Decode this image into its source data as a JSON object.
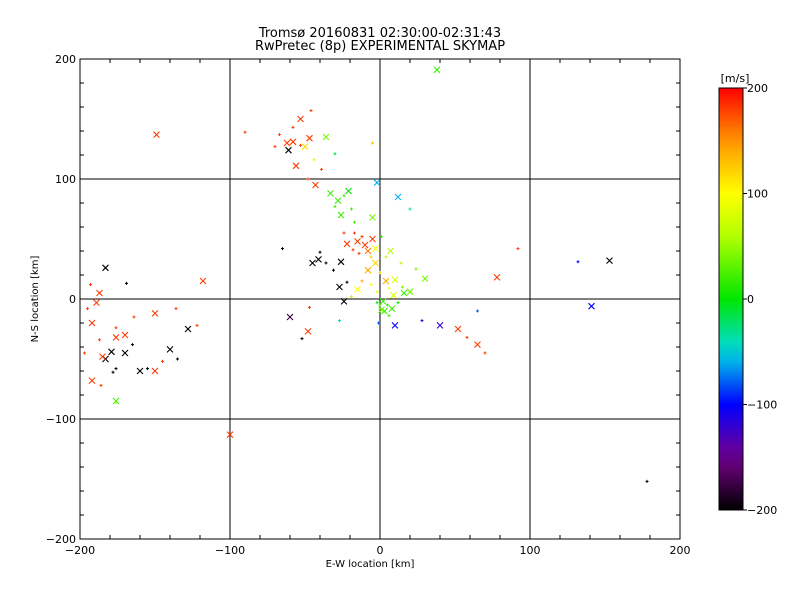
{
  "title_line1": "Tromsø 20160831 02:30:00-02:31:43",
  "title_line2": "RwPretec (8p) EXPERIMENTAL SKYMAP",
  "colors": {
    "grid": "#000000",
    "background": "#ffffff"
  },
  "chart_data": {
    "type": "scatter",
    "title": "Tromsø 20160831 02:30:00-02:31:43\nRwPretec (8p) EXPERIMENTAL SKYMAP",
    "xlabel": "E-W location [km]",
    "ylabel": "N-S location [km]",
    "xlim": [
      -200,
      200
    ],
    "ylim": [
      -200,
      200
    ],
    "xticks": [
      "−200",
      "−100",
      "0",
      "100",
      "200"
    ],
    "yticks": [
      "−200",
      "−100",
      "0",
      "100",
      "200"
    ],
    "grid": true,
    "markers": [
      "x (large)",
      "+ (small)"
    ],
    "colorbar": {
      "label": "[m/s]",
      "range": [
        -200,
        200
      ],
      "ticks": [
        "200",
        "100",
        "0",
        "−100",
        "−200"
      ],
      "colormap": "black-purple-blue-cyan-green-yellow-orange-red",
      "position": "right"
    },
    "points": [
      [
        -183,
        26,
        -200
      ],
      [
        -195,
        -8,
        180
      ],
      [
        -192,
        -20,
        180
      ],
      [
        -187,
        -34,
        180
      ],
      [
        -183,
        -50,
        -200
      ],
      [
        -176,
        -58,
        -200
      ],
      [
        -170,
        -45,
        -200
      ],
      [
        -165,
        -38,
        -200
      ],
      [
        -160,
        -60,
        -200
      ],
      [
        -155,
        -58,
        -200
      ],
      [
        -150,
        -60,
        180
      ],
      [
        -145,
        -52,
        180
      ],
      [
        -140,
        -42,
        -200
      ],
      [
        -135,
        -50,
        -200
      ],
      [
        -128,
        -25,
        -200
      ],
      [
        -122,
        -22,
        180
      ],
      [
        -176,
        -32,
        180
      ],
      [
        -176,
        -24,
        180
      ],
      [
        -170,
        -30,
        180
      ],
      [
        -186,
        -72,
        180
      ],
      [
        -192,
        -68,
        180
      ],
      [
        -197,
        -45,
        180
      ],
      [
        -185,
        -48,
        180
      ],
      [
        -164,
        -15,
        180
      ],
      [
        -150,
        -12,
        180
      ],
      [
        -136,
        -8,
        180
      ],
      [
        -118,
        15,
        180
      ],
      [
        -169,
        13,
        -200
      ],
      [
        -176,
        -85,
        20
      ],
      [
        -193,
        12,
        180
      ],
      [
        -189,
        -3,
        180
      ],
      [
        -176,
        -86,
        40
      ],
      [
        -179,
        -44,
        -200
      ],
      [
        -178,
        -61,
        -200
      ],
      [
        -187,
        5,
        180
      ],
      [
        -67,
        137,
        180
      ],
      [
        -62,
        130,
        180
      ],
      [
        -58,
        143,
        180
      ],
      [
        -53,
        150,
        180
      ],
      [
        -46,
        157,
        180
      ],
      [
        -61,
        124,
        -200
      ],
      [
        -53,
        128,
        180
      ],
      [
        -47,
        134,
        180
      ],
      [
        -70,
        127,
        180
      ],
      [
        -56,
        111,
        180
      ],
      [
        -48,
        100,
        180
      ],
      [
        -43,
        95,
        180
      ],
      [
        -39,
        108,
        180
      ],
      [
        -149,
        137,
        180
      ],
      [
        -90,
        139,
        180
      ],
      [
        -50,
        127,
        120
      ],
      [
        -44,
        116,
        80
      ],
      [
        -36,
        135,
        40
      ],
      [
        -30,
        121,
        -20
      ],
      [
        -58,
        131,
        180
      ],
      [
        -65,
        42,
        -200
      ],
      [
        -45,
        30,
        -200
      ],
      [
        -40,
        39,
        -200
      ],
      [
        -26,
        31,
        -200
      ],
      [
        -31,
        24,
        -200
      ],
      [
        -22,
        46,
        180
      ],
      [
        -18,
        41,
        180
      ],
      [
        -15,
        48,
        180
      ],
      [
        -12,
        52,
        180
      ],
      [
        -10,
        45,
        180
      ],
      [
        -17,
        55,
        180
      ],
      [
        -8,
        40,
        160
      ],
      [
        -24,
        55,
        180
      ],
      [
        -5,
        50,
        180
      ],
      [
        -14,
        38,
        180
      ],
      [
        -28,
        82,
        20
      ],
      [
        -24,
        86,
        20
      ],
      [
        -21,
        90,
        0
      ],
      [
        -30,
        77,
        20
      ],
      [
        -26,
        70,
        20
      ],
      [
        -19,
        75,
        20
      ],
      [
        -33,
        88,
        20
      ],
      [
        -17,
        64,
        20
      ],
      [
        -5,
        68,
        40
      ],
      [
        1,
        52,
        20
      ],
      [
        -3,
        30,
        120
      ],
      [
        0,
        22,
        120
      ],
      [
        4,
        15,
        140
      ],
      [
        6,
        9,
        100
      ],
      [
        9,
        3,
        80
      ],
      [
        -6,
        12,
        100
      ],
      [
        -8,
        24,
        140
      ],
      [
        -2,
        6,
        80
      ],
      [
        2,
        -2,
        20
      ],
      [
        5,
        -5,
        20
      ],
      [
        8,
        -8,
        20
      ],
      [
        12,
        -3,
        0
      ],
      [
        16,
        5,
        20
      ],
      [
        -12,
        15,
        140
      ],
      [
        -15,
        8,
        100
      ],
      [
        -19,
        2,
        60
      ],
      [
        -24,
        -2,
        -200
      ],
      [
        -22,
        14,
        -200
      ],
      [
        -27,
        10,
        -200
      ],
      [
        -36,
        30,
        -200
      ],
      [
        -41,
        33,
        -200
      ],
      [
        0,
        -5,
        20
      ],
      [
        3,
        -10,
        20
      ],
      [
        -2,
        -3,
        0
      ],
      [
        1,
        -9,
        40
      ],
      [
        6,
        -14,
        20
      ],
      [
        10,
        16,
        80
      ],
      [
        15,
        10,
        40
      ],
      [
        20,
        6,
        40
      ],
      [
        24,
        25,
        40
      ],
      [
        30,
        17,
        40
      ],
      [
        -6,
        35,
        120
      ],
      [
        -3,
        42,
        100
      ],
      [
        4,
        35,
        60
      ],
      [
        7,
        40,
        60
      ],
      [
        14,
        30,
        60
      ],
      [
        38,
        191,
        20
      ],
      [
        -5,
        130,
        130
      ],
      [
        12,
        85,
        -60
      ],
      [
        20,
        75,
        -40
      ],
      [
        -2,
        97,
        -60
      ],
      [
        -1,
        -20,
        -80
      ],
      [
        10,
        -22,
        -100
      ],
      [
        28,
        -18,
        -120
      ],
      [
        40,
        -22,
        -120
      ],
      [
        65,
        -10,
        -80
      ],
      [
        52,
        -25,
        180
      ],
      [
        58,
        -32,
        180
      ],
      [
        65,
        -38,
        180
      ],
      [
        70,
        -45,
        180
      ],
      [
        78,
        18,
        180
      ],
      [
        92,
        42,
        180
      ],
      [
        153,
        32,
        -200
      ],
      [
        132,
        31,
        -100
      ],
      [
        141,
        -6,
        -100
      ],
      [
        178,
        -152,
        -200
      ],
      [
        -100,
        -113,
        180
      ],
      [
        -52,
        -33,
        -200
      ],
      [
        -48,
        -27,
        180
      ],
      [
        -47,
        -7,
        180
      ],
      [
        -60,
        -15,
        -180
      ],
      [
        -27,
        -18,
        -40
      ]
    ]
  }
}
